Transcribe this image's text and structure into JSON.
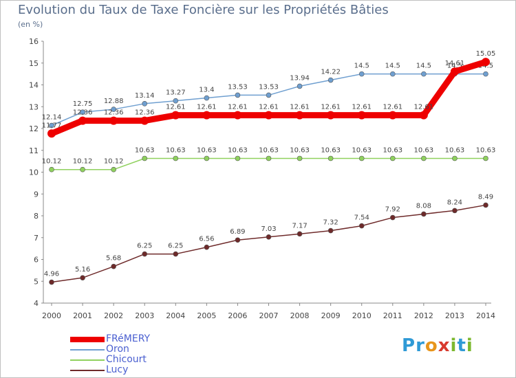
{
  "header": {
    "title": "Evolution du Taux de Taxe Foncière sur les Propriétés Bâties",
    "unit": "(en %)"
  },
  "logo": {
    "text": "Proxiti",
    "letter_colors": [
      "#2f9ad6",
      "#2f9ad6",
      "#e8951b",
      "#d83a2e",
      "#7cb82f",
      "#2f9ad6",
      "#7cb82f"
    ]
  },
  "chart_data": {
    "type": "line",
    "title": "Evolution du Taux de Taxe Foncière sur les Propriétés Bâties",
    "ylabel": "(en %)",
    "xlabel": "",
    "x": [
      "2000",
      "2001",
      "2002",
      "2003",
      "2004",
      "2005",
      "2006",
      "2007",
      "2008",
      "2009",
      "2010",
      "2011",
      "2012",
      "2013",
      "2014"
    ],
    "ylim": [
      4,
      16
    ],
    "yticks": [
      "4",
      "5",
      "6",
      "7",
      "8",
      "9",
      "10",
      "11",
      "12",
      "13",
      "14",
      "15",
      "16"
    ],
    "grid": false,
    "legend_position": "bottom-left",
    "series": [
      {
        "name": "Oron",
        "color": "#6f9fd0",
        "values": [
          12.14,
          12.75,
          12.88,
          13.14,
          13.27,
          13.4,
          13.53,
          13.53,
          13.94,
          14.22,
          14.5,
          14.5,
          14.5,
          14.5,
          14.5
        ],
        "labels": [
          "12.14",
          "12.75",
          "12.88",
          "13.14",
          "13.27",
          "13.4",
          "13.53",
          "13.53",
          "13.94",
          "14.22",
          "14.5",
          "14.5",
          "14.5",
          "14.5",
          "14.5"
        ]
      },
      {
        "name": "Chicourt",
        "color": "#8fd15e",
        "values": [
          10.12,
          10.12,
          10.12,
          10.63,
          10.63,
          10.63,
          10.63,
          10.63,
          10.63,
          10.63,
          10.63,
          10.63,
          10.63,
          10.63,
          10.63
        ],
        "labels": [
          "10.12",
          "10.12",
          "10.12",
          "10.63",
          "10.63",
          "10.63",
          "10.63",
          "10.63",
          "10.63",
          "10.63",
          "10.63",
          "10.63",
          "10.63",
          "10.63",
          "10.63"
        ]
      },
      {
        "name": "Lucy",
        "color": "#6e2a2a",
        "values": [
          4.96,
          5.16,
          5.68,
          6.25,
          6.25,
          6.56,
          6.89,
          7.03,
          7.17,
          7.32,
          7.54,
          7.92,
          8.08,
          8.24,
          8.49
        ],
        "labels": [
          "4.96",
          "5.16",
          "5.68",
          "6.25",
          "6.25",
          "6.56",
          "6.89",
          "7.03",
          "7.17",
          "7.32",
          "7.54",
          "7.92",
          "8.08",
          "8.24",
          "8.49"
        ]
      },
      {
        "name": "FRéMERY",
        "color": "#ee0000",
        "values": [
          11.77,
          12.36,
          12.36,
          12.36,
          12.61,
          12.61,
          12.61,
          12.61,
          12.61,
          12.61,
          12.61,
          12.61,
          12.61,
          14.61,
          15.05
        ],
        "labels": [
          "11.77",
          "12.36",
          "12.36",
          "12.36",
          "12.61",
          "12.61",
          "12.61",
          "12.61",
          "12.61",
          "12.61",
          "12.61",
          "12.61",
          "12.61",
          "14.61",
          "15.05"
        ]
      }
    ],
    "legend_order": [
      "FRéMERY",
      "Oron",
      "Chicourt",
      "Lucy"
    ]
  }
}
